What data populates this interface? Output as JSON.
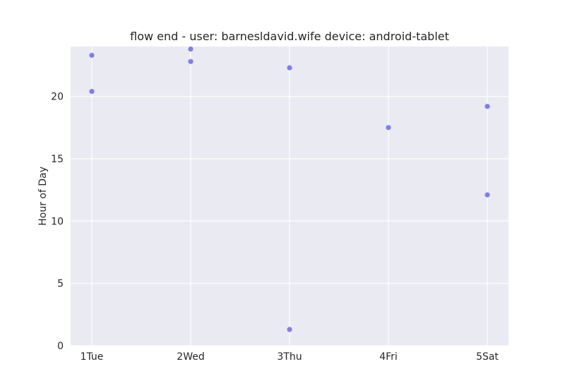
{
  "chart_data": {
    "type": "scatter",
    "title": "flow end - user: barnesldavid.wife device: android-tablet",
    "xlabel": "",
    "ylabel": "Hour of Day",
    "categories": [
      "1Tue",
      "2Wed",
      "3Thu",
      "4Fri",
      "5Sat"
    ],
    "ylim": [
      0,
      24
    ],
    "yticks": [
      0,
      5,
      10,
      15,
      20
    ],
    "grid": true,
    "background_color": "#EAEAF2",
    "grid_color": "#FFFFFF",
    "point_color": "#6B6BEB",
    "points": [
      {
        "x": "1Tue",
        "y": 23.3
      },
      {
        "x": "1Tue",
        "y": 20.4
      },
      {
        "x": "2Wed",
        "y": 23.8
      },
      {
        "x": "2Wed",
        "y": 22.8
      },
      {
        "x": "3Thu",
        "y": 22.3
      },
      {
        "x": "3Thu",
        "y": 1.3
      },
      {
        "x": "4Fri",
        "y": 17.5
      },
      {
        "x": "5Sat",
        "y": 19.2
      },
      {
        "x": "5Sat",
        "y": 12.1
      }
    ]
  }
}
